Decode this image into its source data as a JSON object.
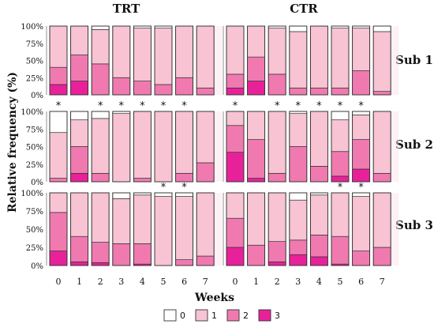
{
  "chart_data": {
    "type": "bar",
    "stacked": true,
    "percent": true,
    "ylabel": "Relative frequency (%)",
    "xlabel": "Weeks",
    "categories": [
      "0",
      "1",
      "2",
      "3",
      "4",
      "5",
      "6",
      "7"
    ],
    "ylim": [
      0,
      100
    ],
    "yticks": [
      "0%",
      "25%",
      "50%",
      "75%",
      "100%"
    ],
    "groups": [
      "TRT",
      "CTR"
    ],
    "rows": [
      "Sub 1",
      "Sub 2",
      "Sub 3"
    ],
    "legend": {
      "placement": "bottom",
      "entries": [
        {
          "label": "0",
          "color": "#ffffff"
        },
        {
          "label": "1",
          "color": "#f8c3d3"
        },
        {
          "label": "2",
          "color": "#f07ab0"
        },
        {
          "label": "3",
          "color": "#e8219a"
        }
      ]
    },
    "significance_marker": "*",
    "panels": [
      {
        "row": "Sub 1",
        "group": "TRT",
        "stars": [],
        "values": [
          [
            0,
            60,
            25,
            15
          ],
          [
            0,
            42,
            38,
            20
          ],
          [
            5,
            50,
            45,
            0
          ],
          [
            0,
            75,
            25,
            0
          ],
          [
            3,
            77,
            20,
            0
          ],
          [
            3,
            82,
            15,
            0
          ],
          [
            0,
            75,
            25,
            0
          ],
          [
            0,
            90,
            10,
            0
          ]
        ]
      },
      {
        "row": "Sub 1",
        "group": "CTR",
        "stars": [],
        "values": [
          [
            0,
            70,
            20,
            10
          ],
          [
            0,
            45,
            35,
            20
          ],
          [
            3,
            67,
            30,
            0
          ],
          [
            8,
            82,
            10,
            0
          ],
          [
            0,
            90,
            10,
            0
          ],
          [
            3,
            87,
            10,
            0
          ],
          [
            3,
            62,
            35,
            0
          ],
          [
            8,
            87,
            5,
            0
          ]
        ]
      },
      {
        "row": "Sub 2",
        "group": "TRT",
        "stars": [
          0,
          2,
          3,
          4,
          5,
          6
        ],
        "values": [
          [
            30,
            65,
            5,
            0
          ],
          [
            12,
            38,
            38,
            12
          ],
          [
            10,
            78,
            12,
            0
          ],
          [
            3,
            97,
            0,
            0
          ],
          [
            0,
            95,
            5,
            0
          ],
          [
            0,
            100,
            0,
            0
          ],
          [
            0,
            88,
            12,
            0
          ],
          [
            0,
            73,
            27,
            0
          ]
        ]
      },
      {
        "row": "Sub 2",
        "group": "CTR",
        "stars": [
          0,
          2,
          3,
          4,
          5,
          6
        ],
        "values": [
          [
            0,
            20,
            38,
            42
          ],
          [
            0,
            40,
            55,
            5
          ],
          [
            0,
            88,
            12,
            0
          ],
          [
            3,
            47,
            50,
            0
          ],
          [
            0,
            78,
            22,
            0
          ],
          [
            12,
            45,
            35,
            8
          ],
          [
            5,
            35,
            42,
            18
          ],
          [
            0,
            88,
            12,
            0
          ]
        ]
      },
      {
        "row": "Sub 3",
        "group": "TRT",
        "stars": [
          5,
          6
        ],
        "values": [
          [
            0,
            27,
            53,
            20
          ],
          [
            0,
            60,
            35,
            5
          ],
          [
            0,
            68,
            28,
            4
          ],
          [
            8,
            62,
            30,
            0
          ],
          [
            3,
            67,
            28,
            2
          ],
          [
            5,
            95,
            0,
            0
          ],
          [
            5,
            87,
            8,
            0
          ],
          [
            0,
            87,
            13,
            0
          ]
        ]
      },
      {
        "row": "Sub 3",
        "group": "CTR",
        "stars": [
          5,
          6
        ],
        "values": [
          [
            0,
            35,
            40,
            25
          ],
          [
            0,
            72,
            28,
            0
          ],
          [
            0,
            67,
            28,
            5
          ],
          [
            10,
            55,
            20,
            15
          ],
          [
            3,
            55,
            30,
            12
          ],
          [
            0,
            60,
            38,
            2
          ],
          [
            5,
            75,
            20,
            0
          ],
          [
            0,
            75,
            25,
            0
          ]
        ]
      }
    ]
  }
}
